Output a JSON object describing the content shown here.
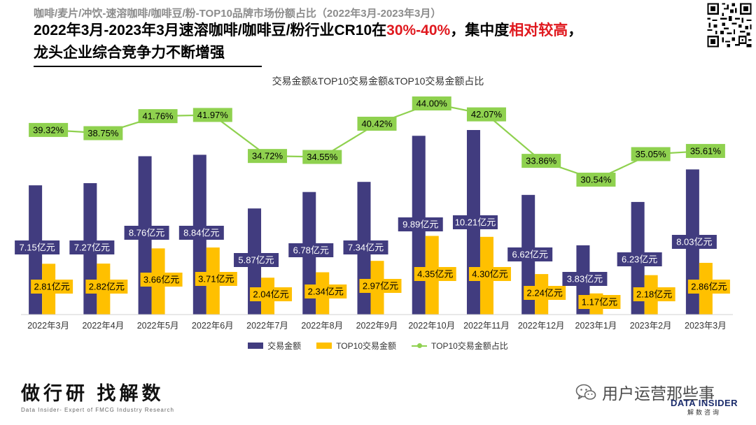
{
  "header": {
    "supertitle": "咖啡/麦片/冲饮-速溶咖啡/咖啡豆/粉-TOP10品牌市场份额占比（2022年3月-2023年3月）",
    "headline_part1": "2022年3月-2023年3月速溶咖啡/咖啡豆/粉行业CR10在",
    "headline_highlight1": "30%-40%",
    "headline_part2": "，集中度",
    "headline_highlight2": "相对较高",
    "headline_part3": "，",
    "headline_line2": "龙头企业综合竞争力不断增强",
    "highlight_color": "#e0191f"
  },
  "chart_data": {
    "type": "bar",
    "title": "交易金额&TOP10交易金额&TOP10交易金额占比",
    "categories": [
      "2022年3月",
      "2022年4月",
      "2022年5月",
      "2022年6月",
      "2022年7月",
      "2022年8月",
      "2022年9月",
      "2022年10月",
      "2022年11月",
      "2022年12月",
      "2023年1月",
      "2023年2月",
      "2023年3月"
    ],
    "series": [
      {
        "name": "交易金额",
        "type": "bar",
        "color": "#413c7f",
        "unit": "亿元",
        "values": [
          7.15,
          7.27,
          8.76,
          8.84,
          5.87,
          6.78,
          7.34,
          9.89,
          10.21,
          6.62,
          3.83,
          6.23,
          8.03
        ],
        "labels": [
          "7.15亿元",
          "7.27亿元",
          "8.76亿元",
          "8.84亿元",
          "5.87亿元",
          "6.78亿元",
          "7.34亿元",
          "9.89亿元",
          "10.21亿元",
          "6.62亿元",
          "3.83亿元",
          "6.23亿元",
          "8.03亿元"
        ]
      },
      {
        "name": "TOP10交易金额",
        "type": "bar",
        "color": "#ffc000",
        "unit": "亿元",
        "values": [
          2.81,
          2.82,
          3.66,
          3.71,
          2.04,
          2.34,
          2.97,
          4.35,
          4.3,
          2.24,
          1.17,
          2.18,
          2.86
        ],
        "labels": [
          "2.81亿元",
          "2.82亿元",
          "3.66亿元",
          "3.71亿元",
          "2.04亿元",
          "2.34亿元",
          "2.97亿元",
          "4.35亿元",
          "4.30亿元",
          "2.24亿元",
          "1.17亿元",
          "2.18亿元",
          "2.86亿元"
        ]
      },
      {
        "name": "TOP10交易金额占比",
        "type": "line",
        "color": "#8fd14f",
        "unit": "%",
        "values": [
          39.32,
          38.75,
          41.76,
          41.97,
          34.72,
          34.55,
          40.42,
          44.0,
          42.07,
          33.86,
          30.54,
          35.05,
          35.61
        ],
        "labels": [
          "39.32%",
          "38.75%",
          "41.76%",
          "41.97%",
          "34.72%",
          "34.55%",
          "40.42%",
          "44.00%",
          "42.07%",
          "33.86%",
          "30.54%",
          "35.05%",
          "35.61%"
        ]
      }
    ],
    "bar_ylim": [
      0,
      11
    ],
    "line_ylim": [
      10,
      46
    ],
    "grid": false,
    "legend_position": "bottom"
  },
  "footer": {
    "slogan": "做行研 找解数",
    "tagline": "Data Insider- Expert of FMCG Industry Research",
    "watermark": "用户运营那些事",
    "logo_name": "DATA INSIDER",
    "logo_sub": "解数咨询"
  },
  "icons": {
    "qr": "qr-code-icon",
    "watermark": "wechat-icon"
  }
}
